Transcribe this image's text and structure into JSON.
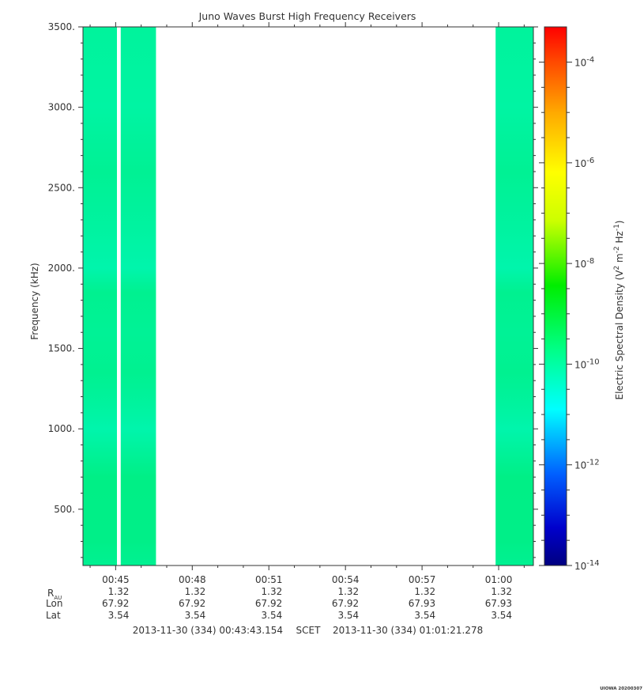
{
  "chart_data": {
    "type": "heatmap",
    "title": "Juno Waves Burst High Frequency Receivers",
    "ylabel": "Frequency (kHz)",
    "ylim": [
      150,
      3500
    ],
    "y_ticks": [
      "500.",
      "1000.",
      "1500.",
      "2000.",
      "2500.",
      "3000.",
      "3500."
    ],
    "y_tick_values": [
      500,
      1000,
      1500,
      2000,
      2500,
      3000,
      3500
    ],
    "x_range_minutes": [
      43.72,
      61.36
    ],
    "x_ticks": [
      "00:45",
      "00:48",
      "00:51",
      "00:54",
      "00:57",
      "01:00"
    ],
    "x_tick_minutes": [
      45,
      48,
      51,
      54,
      57,
      60
    ],
    "data_blocks_minutes": [
      [
        43.72,
        45.05
      ],
      [
        45.2,
        46.58
      ],
      [
        59.88,
        61.36
      ]
    ],
    "band_profile": [
      {
        "freq": 150,
        "level": 0.3
      },
      {
        "freq": 300,
        "level": 0.22
      },
      {
        "freq": 700,
        "level": 0.2
      },
      {
        "freq": 850,
        "level": 0.36
      },
      {
        "freq": 1000,
        "level": 0.52
      },
      {
        "freq": 1150,
        "level": 0.4
      },
      {
        "freq": 1350,
        "level": 0.28
      },
      {
        "freq": 1600,
        "level": 0.33
      },
      {
        "freq": 1850,
        "level": 0.28
      },
      {
        "freq": 2000,
        "level": 0.52
      },
      {
        "freq": 2250,
        "level": 0.42
      },
      {
        "freq": 2600,
        "level": 0.32
      },
      {
        "freq": 3000,
        "level": 0.44
      },
      {
        "freq": 3500,
        "level": 0.38
      }
    ],
    "colorbar": {
      "label_main": "Electric Spectral Density (V",
      "label_sup1": "2",
      "label_mid1": " m",
      "label_sup2": "-2",
      "label_mid2": " Hz",
      "label_sup3": "-1",
      "label_end": ")",
      "range_exp": [
        -14,
        -3.3
      ],
      "ticks": [
        {
          "base": "10",
          "exp": "-4",
          "value": -4
        },
        {
          "base": "10",
          "exp": "-6",
          "value": -6
        },
        {
          "base": "10",
          "exp": "-8",
          "value": -8
        },
        {
          "base": "10",
          "exp": "-10",
          "value": -10
        },
        {
          "base": "10",
          "exp": "-12",
          "value": -12
        },
        {
          "base": "10",
          "exp": "-14",
          "value": -14
        }
      ]
    },
    "ephemeris": {
      "r_label": "R",
      "r_sub": "AU",
      "rows": [
        {
          "label": "Lon",
          "values": [
            "67.92",
            "67.92",
            "67.92",
            "67.92",
            "67.93",
            "67.93"
          ]
        },
        {
          "label": "Lat",
          "values": [
            "3.54",
            "3.54",
            "3.54",
            "3.54",
            "3.54",
            "3.54"
          ]
        }
      ],
      "r_values": [
        "1.32",
        "1.32",
        "1.32",
        "1.32",
        "1.32",
        "1.32"
      ]
    },
    "time_range": {
      "start": "2013-11-30 (334) 00:43:43.154",
      "frame": "SCET",
      "end": "2013-11-30 (334) 01:01:21.278"
    },
    "grid": false
  },
  "footer_tag": "UIOWA 20200307"
}
